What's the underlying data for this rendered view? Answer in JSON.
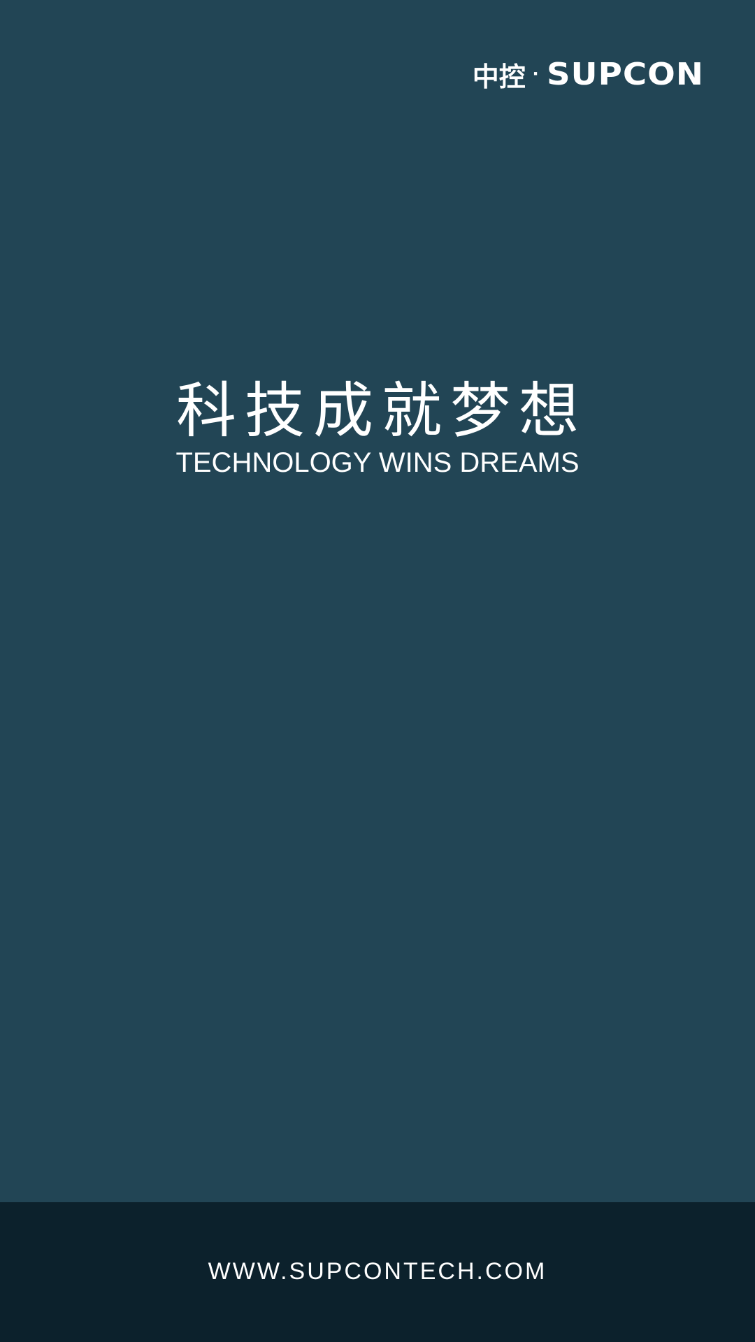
{
  "colors": {
    "background": "#224555",
    "footer_background": "#0c212c",
    "text": "#ffffff"
  },
  "logo": {
    "chinese": "中控",
    "separator": "·",
    "english": "SUPCON"
  },
  "slogan": {
    "chinese": "科技成就梦想",
    "english": "TECHNOLOGY WINS DREAMS"
  },
  "footer": {
    "url": "WWW.SUPCONTECH.COM"
  }
}
